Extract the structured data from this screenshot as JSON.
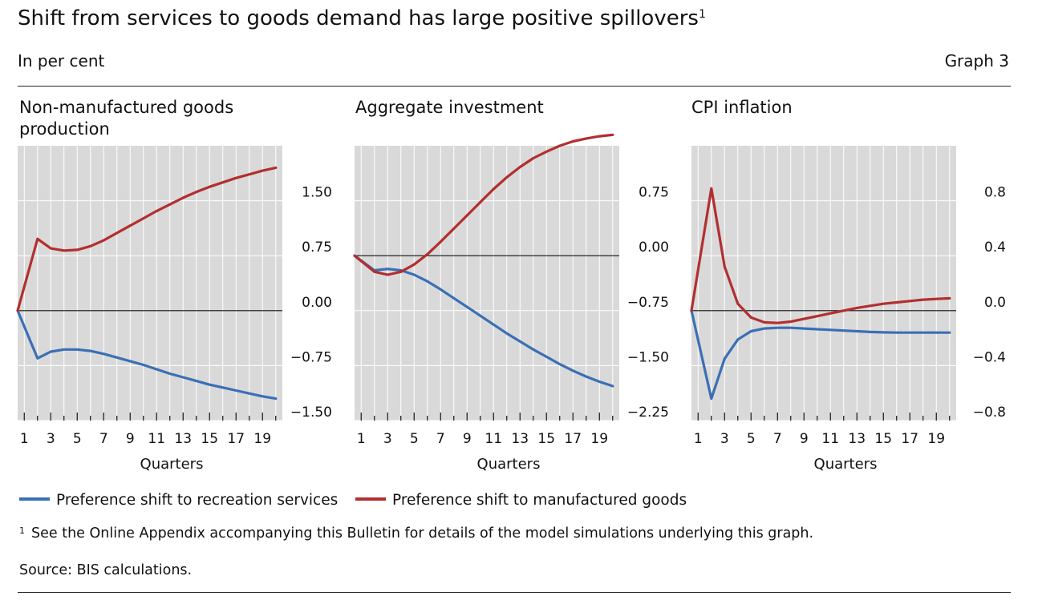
{
  "header": {
    "title": "Shift from services to goods demand has large positive spillovers",
    "title_footnote_mark": "1",
    "unit": "In per cent",
    "graph_number": "Graph 3"
  },
  "legend": {
    "items": [
      {
        "label": "Preference shift to recreation services",
        "color": "#3a6fb6"
      },
      {
        "label": "Preference shift to manufactured goods",
        "color": "#b22f2f"
      }
    ]
  },
  "footnote": {
    "mark": "1",
    "text": "See the Online Appendix accompanying this Bulletin for details of the model simulations underlying this graph."
  },
  "source": "Source: BIS calculations.",
  "colors": {
    "plot_bg": "#d9d9d9",
    "grid": "#ffffff",
    "axis": "#111111"
  },
  "chart_data": [
    {
      "type": "line",
      "title": "Non-manufactured goods production",
      "xlabel": "Quarters",
      "ylabel": "",
      "x": [
        0,
        1,
        2,
        3,
        4,
        5,
        6,
        7,
        8,
        9,
        10,
        11,
        12,
        13,
        14,
        15,
        16,
        17,
        18,
        19
      ],
      "x_tick_labels": [
        "1",
        "3",
        "5",
        "7",
        "9",
        "11",
        "13",
        "15",
        "17",
        "19"
      ],
      "y_ticks": [
        -1.5,
        -0.75,
        0.0,
        0.75,
        1.5
      ],
      "y_tick_labels": [
        "−1.50",
        "−0.75",
        "0.00",
        "0.75",
        "1.50"
      ],
      "ylim": [
        -1.5,
        2.25
      ],
      "y_axis_side": "right",
      "grid": true,
      "series": [
        {
          "name": "Preference shift to recreation services",
          "color": "#3a6fb6",
          "values": [
            0,
            -0.65,
            -0.56,
            -0.53,
            -0.53,
            -0.55,
            -0.59,
            -0.64,
            -0.69,
            -0.74,
            -0.8,
            -0.86,
            -0.91,
            -0.96,
            -1.01,
            -1.05,
            -1.09,
            -1.13,
            -1.17,
            -1.2
          ]
        },
        {
          "name": "Preference shift to manufactured goods",
          "color": "#b22f2f",
          "values": [
            0,
            0.98,
            0.85,
            0.82,
            0.83,
            0.88,
            0.96,
            1.06,
            1.16,
            1.26,
            1.36,
            1.45,
            1.54,
            1.62,
            1.69,
            1.75,
            1.81,
            1.86,
            1.91,
            1.95
          ]
        }
      ]
    },
    {
      "type": "line",
      "title": "Aggregate investment",
      "xlabel": "Quarters",
      "ylabel": "",
      "x": [
        0,
        1,
        2,
        3,
        4,
        5,
        6,
        7,
        8,
        9,
        10,
        11,
        12,
        13,
        14,
        15,
        16,
        17,
        18,
        19
      ],
      "x_tick_labels": [
        "1",
        "3",
        "5",
        "7",
        "9",
        "11",
        "13",
        "15",
        "17",
        "19"
      ],
      "y_ticks": [
        -2.25,
        -1.5,
        -0.75,
        0.0,
        0.75
      ],
      "y_tick_labels": [
        "−2.25",
        "−1.50",
        "−0.75",
        "0.00",
        "0.75"
      ],
      "ylim": [
        -2.25,
        1.5
      ],
      "y_axis_side": "right",
      "grid": true,
      "series": [
        {
          "name": "Preference shift to recreation services",
          "color": "#3a6fb6",
          "values": [
            0,
            -0.2,
            -0.18,
            -0.2,
            -0.26,
            -0.35,
            -0.46,
            -0.58,
            -0.7,
            -0.82,
            -0.94,
            -1.06,
            -1.17,
            -1.28,
            -1.38,
            -1.48,
            -1.57,
            -1.65,
            -1.72,
            -1.78
          ]
        },
        {
          "name": "Preference shift to manufactured goods",
          "color": "#b22f2f",
          "values": [
            0,
            -0.22,
            -0.26,
            -0.22,
            -0.12,
            0.02,
            0.19,
            0.37,
            0.55,
            0.73,
            0.91,
            1.07,
            1.21,
            1.33,
            1.42,
            1.5,
            1.56,
            1.6,
            1.63,
            1.65
          ]
        }
      ]
    },
    {
      "type": "line",
      "title": "CPI inflation",
      "xlabel": "Quarters",
      "ylabel": "",
      "x": [
        0,
        1,
        2,
        3,
        4,
        5,
        6,
        7,
        8,
        9,
        10,
        11,
        12,
        13,
        14,
        15,
        16,
        17,
        18,
        19
      ],
      "x_tick_labels": [
        "1",
        "3",
        "5",
        "7",
        "9",
        "11",
        "13",
        "15",
        "17",
        "19"
      ],
      "y_ticks": [
        -0.8,
        -0.4,
        0.0,
        0.4,
        0.8
      ],
      "y_tick_labels": [
        "−0.8",
        "−0.4",
        "0.0",
        "0.4",
        "0.8"
      ],
      "ylim": [
        -0.8,
        1.2
      ],
      "y_axis_side": "right",
      "grid": true,
      "series": [
        {
          "name": "Preference shift to recreation services",
          "color": "#3a6fb6",
          "values": [
            0,
            -0.64,
            -0.35,
            -0.21,
            -0.15,
            -0.13,
            -0.125,
            -0.125,
            -0.13,
            -0.135,
            -0.14,
            -0.145,
            -0.15,
            -0.155,
            -0.158,
            -0.16,
            -0.16,
            -0.16,
            -0.16,
            -0.16
          ]
        },
        {
          "name": "Preference shift to manufactured goods",
          "color": "#b22f2f",
          "values": [
            0,
            0.89,
            0.32,
            0.05,
            -0.05,
            -0.085,
            -0.09,
            -0.08,
            -0.06,
            -0.04,
            -0.02,
            0.0,
            0.02,
            0.035,
            0.05,
            0.06,
            0.07,
            0.08,
            0.085,
            0.09
          ]
        }
      ]
    }
  ]
}
